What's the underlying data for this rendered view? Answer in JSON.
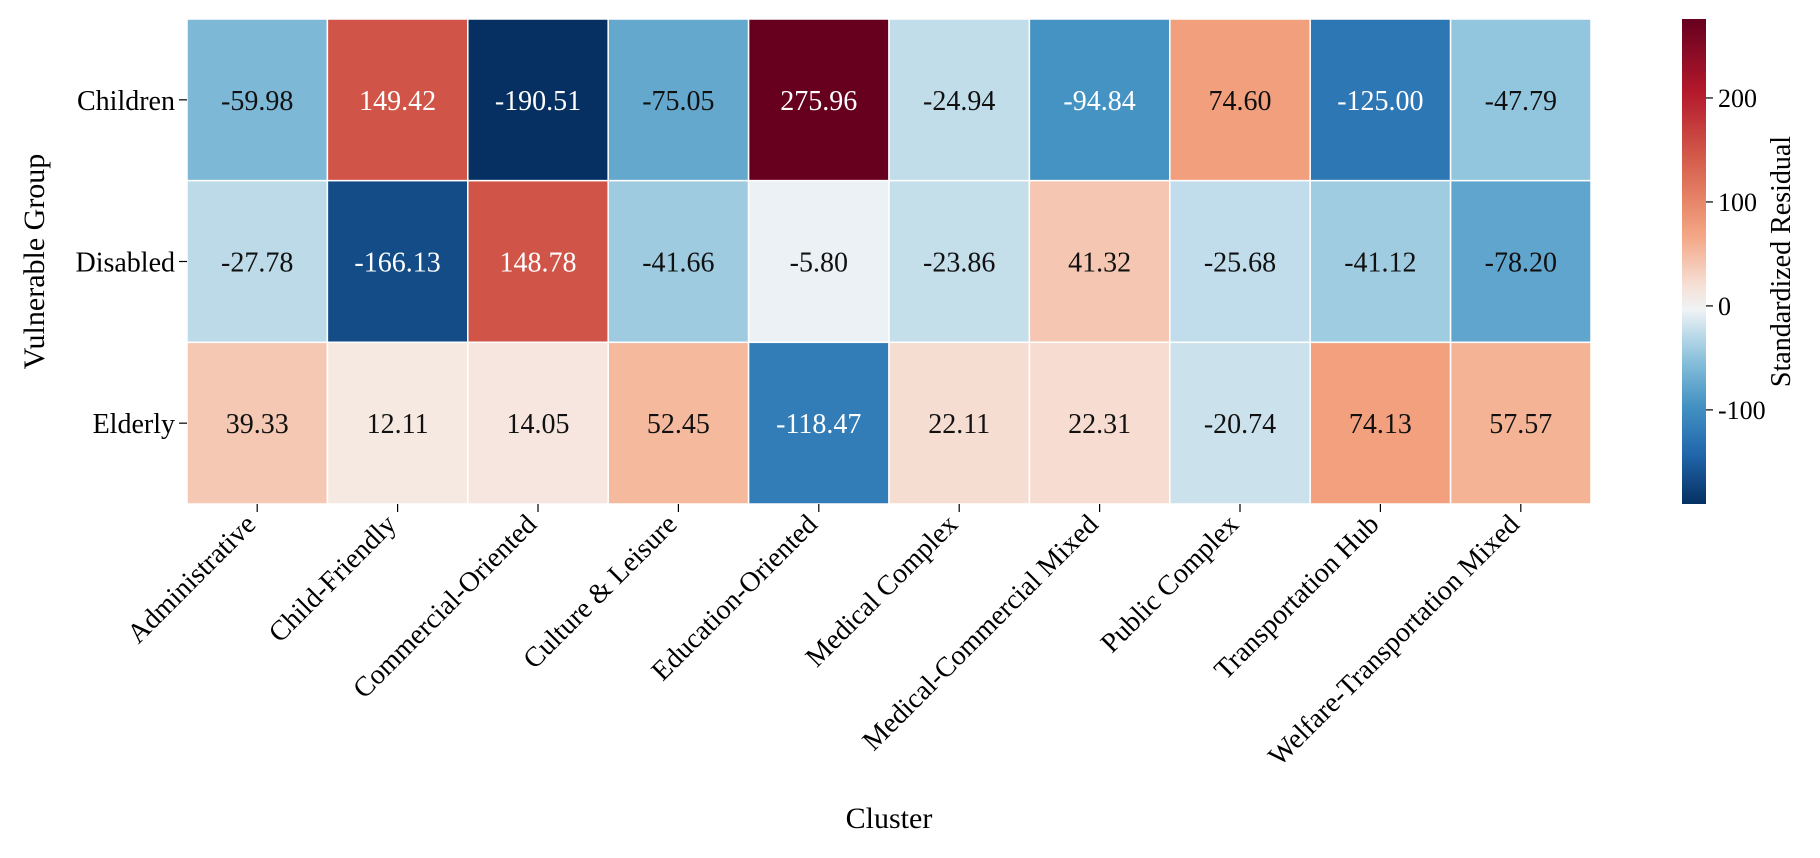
{
  "chart_data": {
    "type": "heatmap",
    "title": "",
    "xlabel": "Cluster",
    "ylabel": "Vulnerable Group",
    "colorbar_label": "Standardized Residual",
    "colormap": "RdBu_r",
    "x_categories": [
      "Administrative",
      "Child-Friendly",
      "Commercial-Oriented",
      "Culture & Leisure",
      "Education-Oriented",
      "Medical Complex",
      "Medical-Commercial Mixed",
      "Public Complex",
      "Transportation Hub",
      "Welfare-Transportation Mixed"
    ],
    "y_categories": [
      "Children",
      "Disabled",
      "Elderly"
    ],
    "values": [
      [
        -59.98,
        149.42,
        -190.51,
        -75.05,
        275.96,
        -24.94,
        -94.84,
        74.6,
        -125.0,
        -47.79
      ],
      [
        -27.78,
        -166.13,
        148.78,
        -41.66,
        -5.8,
        -23.86,
        41.32,
        -25.68,
        -41.12,
        -78.2
      ],
      [
        39.33,
        12.11,
        14.05,
        52.45,
        -118.47,
        22.11,
        22.31,
        -20.74,
        74.13,
        57.57
      ]
    ],
    "value_format": "0.00",
    "colorbar_range": [
      -190.51,
      275.96
    ],
    "colorbar_ticks": [
      -100,
      0,
      100,
      200
    ],
    "colorbar_tick_labels": [
      "-100",
      "0",
      "100",
      "200"
    ],
    "grid": false
  }
}
